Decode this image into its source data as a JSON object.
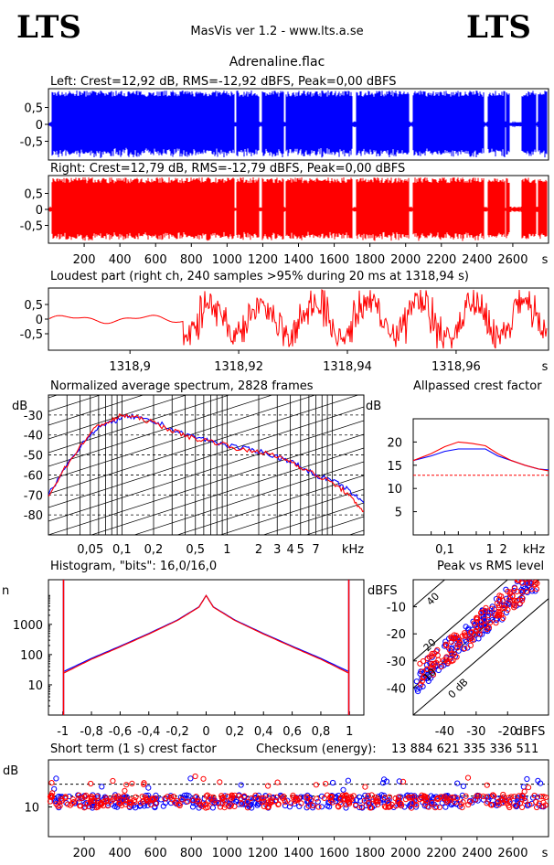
{
  "header": {
    "logo_left": "LTS",
    "logo_right": "LTS",
    "app_title": "MasVis ver 1.2 - www.lts.a.se",
    "file_name": "Adrenaline.flac"
  },
  "colors": {
    "left": "#0000ff",
    "right": "#ff0000",
    "grid": "#000000",
    "background": "#ffffff"
  },
  "chart_data": [
    {
      "id": "left_waveform",
      "type": "area",
      "title": "Left: Crest=12,92 dB, RMS=-12,92 dBFS, Peak=0,00 dBFS",
      "ylim": [
        -1,
        1
      ],
      "yticks": [
        "0,5",
        "0",
        "-0,5"
      ],
      "xlim": [
        0,
        2800
      ],
      "loud_sections_s": [
        [
          20,
          1040
        ],
        [
          1050,
          1180
        ],
        [
          1195,
          1320
        ],
        [
          1330,
          1700
        ],
        [
          1720,
          2020
        ],
        [
          2040,
          2440
        ],
        [
          2460,
          2555
        ],
        [
          2560,
          2580
        ],
        [
          2650,
          2730
        ],
        [
          2740,
          2790
        ]
      ]
    },
    {
      "id": "right_waveform",
      "type": "area",
      "title": "Right: Crest=12,79 dB, RMS=-12,79 dBFS, Peak=0,00 dBFS",
      "ylim": [
        -1,
        1
      ],
      "yticks": [
        "0,5",
        "0",
        "-0,5"
      ],
      "xlim": [
        0,
        2800
      ],
      "xticks": [
        "200",
        "400",
        "600",
        "800",
        "1000",
        "1200",
        "1400",
        "1600",
        "1800",
        "2000",
        "2200",
        "2400",
        "2600"
      ],
      "xunit": "s",
      "loud_sections_s": [
        [
          20,
          1040
        ],
        [
          1050,
          1180
        ],
        [
          1195,
          1320
        ],
        [
          1330,
          1700
        ],
        [
          1720,
          2020
        ],
        [
          2040,
          2440
        ],
        [
          2460,
          2555
        ],
        [
          2560,
          2580
        ],
        [
          2650,
          2730
        ],
        [
          2740,
          2790
        ]
      ]
    },
    {
      "id": "loudest_part",
      "type": "line",
      "title": "Loudest part (right ch, 240 samples >95% during 20 ms at 1318,94 s)",
      "ylim": [
        -1,
        1
      ],
      "yticks": [
        "0,5",
        "0",
        "-0,5"
      ],
      "xlim": [
        1318.885,
        1318.977
      ],
      "xticks": [
        "1318,9",
        "1318,92",
        "1318,94",
        "1318,96"
      ],
      "xunit": "s"
    },
    {
      "id": "avg_spectrum",
      "type": "line",
      "title": "Normalized average spectrum, 2828 frames",
      "ylabel": "dB",
      "ylim": [
        -90,
        -20
      ],
      "yticks": [
        "-30",
        "-40",
        "-50",
        "-60",
        "-70",
        "-80"
      ],
      "xticks": [
        "0,05",
        "0,1",
        "0,2",
        "0,5",
        "1",
        "2",
        "3",
        "4",
        "5",
        "7"
      ],
      "xunit": "kHz",
      "log_x": true,
      "series": [
        {
          "color": "#0000ff",
          "x": [
            0.02,
            0.03,
            0.045,
            0.06,
            0.08,
            0.1,
            0.13,
            0.18,
            0.25,
            0.35,
            0.5,
            0.7,
            1,
            1.5,
            2,
            3,
            4,
            5,
            7,
            10,
            13,
            16,
            20
          ],
          "y": [
            -70,
            -55,
            -42,
            -36,
            -34,
            -31,
            -31,
            -33,
            -35,
            -39,
            -41,
            -43,
            -45,
            -47,
            -48,
            -51,
            -53,
            -56,
            -60,
            -63,
            -66,
            -70,
            -74
          ]
        },
        {
          "color": "#ff0000",
          "x": [
            0.02,
            0.03,
            0.045,
            0.06,
            0.08,
            0.1,
            0.13,
            0.18,
            0.25,
            0.35,
            0.5,
            0.7,
            1,
            1.5,
            2,
            3,
            4,
            5,
            7,
            10,
            13,
            16,
            20
          ],
          "y": [
            -70,
            -55,
            -42,
            -35,
            -33,
            -30,
            -31,
            -33,
            -36,
            -39,
            -42,
            -43,
            -45,
            -48,
            -48,
            -51,
            -53,
            -56,
            -60,
            -64,
            -68,
            -73,
            -78
          ]
        }
      ]
    },
    {
      "id": "allpassed_crest",
      "type": "line",
      "title": "Allpassed crest factor",
      "ylabel": "dB",
      "ylim": [
        0,
        25
      ],
      "yticks": [
        "20",
        "15",
        "10",
        "5"
      ],
      "xticks": [
        "0,1",
        "1",
        "2"
      ],
      "xunit": "kHz",
      "log_x": true,
      "reference_db": 12.85,
      "series": [
        {
          "color": "#0000ff",
          "x": [
            0.02,
            0.05,
            0.1,
            0.2,
            0.4,
            0.8,
            1.5,
            3,
            6,
            12,
            20
          ],
          "y": [
            16,
            17,
            18,
            18.5,
            18.5,
            18.5,
            17,
            16,
            15,
            14.2,
            14
          ]
        },
        {
          "color": "#ff0000",
          "x": [
            0.02,
            0.05,
            0.1,
            0.2,
            0.4,
            0.8,
            1.5,
            3,
            6,
            12,
            20
          ],
          "y": [
            16,
            17.5,
            19,
            20,
            19.7,
            19.2,
            17.5,
            16,
            15,
            14.2,
            13.8
          ]
        }
      ]
    },
    {
      "id": "histogram",
      "type": "line",
      "title": "Histogram, \"bits\": 16,0/16,0",
      "ylabel": "n",
      "log_y": true,
      "ylim": [
        1,
        30000
      ],
      "yticks": [
        "1000",
        "100",
        "10"
      ],
      "xlim": [
        -1.1,
        1.1
      ],
      "xticks": [
        "-1",
        "-0,8",
        "-0,6",
        "-0,4",
        "-0,2",
        "0",
        "0,2",
        "0,4",
        "0,6",
        "0,8",
        "1"
      ],
      "edge_spike_value": 30000,
      "series": [
        {
          "color": "#0000ff",
          "x": [
            -0.99,
            -0.8,
            -0.6,
            -0.4,
            -0.2,
            -0.05,
            0,
            0.05,
            0.2,
            0.4,
            0.6,
            0.8,
            0.99
          ],
          "y": [
            28,
            75,
            190,
            500,
            1400,
            3800,
            9000,
            3800,
            1400,
            500,
            190,
            75,
            28
          ]
        },
        {
          "color": "#ff0000",
          "x": [
            -0.99,
            -0.8,
            -0.6,
            -0.4,
            -0.2,
            -0.05,
            0,
            0.05,
            0.2,
            0.4,
            0.6,
            0.8,
            0.99
          ],
          "y": [
            25,
            70,
            180,
            480,
            1350,
            3700,
            9000,
            3700,
            1350,
            480,
            180,
            70,
            25
          ]
        }
      ]
    },
    {
      "id": "peak_vs_rms",
      "type": "scatter",
      "title": "Peak vs RMS level",
      "ylabel": "dBFS",
      "xlabel": "dBFS",
      "xlim": [
        -50,
        -7
      ],
      "ylim": [
        -50,
        0
      ],
      "xticks": [
        "-40",
        "-30",
        "-20"
      ],
      "yticks": [
        "-10",
        "-20",
        "-30",
        "-40"
      ],
      "diagonal_labels": [
        "40",
        "20",
        "10",
        "0 dB"
      ],
      "series": [
        {
          "color": "#0000ff",
          "x_range": [
            -49,
            -9
          ],
          "offset_db": 12
        },
        {
          "color": "#ff0000",
          "x_range": [
            -49,
            -9
          ],
          "offset_db": 12
        }
      ]
    },
    {
      "id": "short_term_crest",
      "type": "scatter",
      "title": "Short term (1 s) crest factor",
      "ylabel": "dB",
      "log_y": true,
      "ylim": [
        5,
        30
      ],
      "yticks": [
        "10"
      ],
      "xlim": [
        0,
        2800
      ],
      "xticks": [
        "200",
        "400",
        "600",
        "800",
        "1000",
        "1200",
        "1400",
        "1600",
        "1800",
        "2000",
        "2200",
        "2400",
        "2600"
      ],
      "xunit": "s",
      "reference_db": [
        12.9,
        17
      ],
      "series": [
        {
          "color": "#0000ff",
          "baseline_db": 11.5
        },
        {
          "color": "#ff0000",
          "baseline_db": 11.5
        }
      ]
    }
  ],
  "checksum": {
    "label": "Checksum (energy):",
    "value": "13 884 621 335 336 511"
  }
}
